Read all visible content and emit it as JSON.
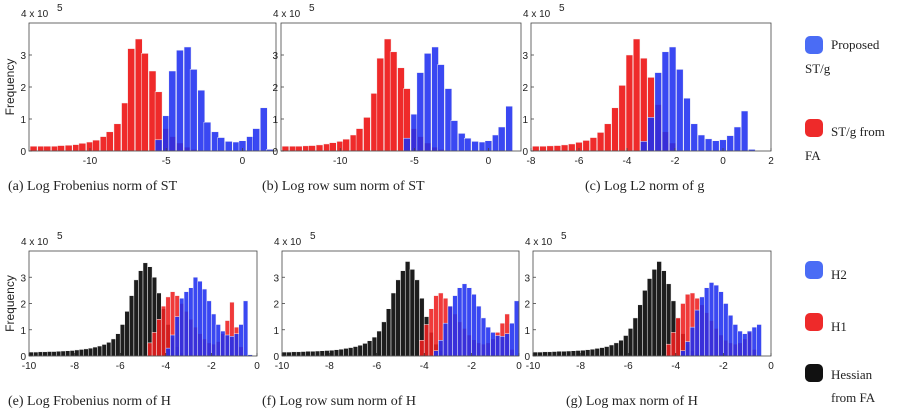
{
  "chart_data": [
    {
      "type": "bar",
      "caption": "(a)  Log Frobenius norm of ST",
      "ylabel": "Frequency",
      "y_exponent": "4 x 10",
      "y_exponent_power": "5",
      "xlim": [
        -14,
        2.2
      ],
      "ylim": [
        0,
        4
      ],
      "xticks": [
        -10,
        -5,
        0
      ],
      "yticks": [
        0,
        1,
        2,
        3
      ],
      "bar_width": 0.46,
      "series": [
        {
          "name": "ST/g from FA",
          "color": "#ee1f1f",
          "x": [
            -13.7,
            -13.2,
            -12.8,
            -12.3,
            -11.9,
            -11.4,
            -10.9,
            -10.5,
            -10.0,
            -9.6,
            -9.1,
            -8.7,
            -8.2,
            -7.7,
            -7.3,
            -6.8,
            -6.4,
            -5.9,
            -5.5,
            -5.0,
            -4.6,
            -4.1,
            -3.6,
            -3.2
          ],
          "values": [
            0.15,
            0.15,
            0.15,
            0.15,
            0.17,
            0.18,
            0.2,
            0.24,
            0.28,
            0.34,
            0.45,
            0.6,
            0.85,
            1.5,
            3.2,
            3.5,
            3.05,
            2.5,
            1.85,
            0.7,
            0.45,
            0.25,
            0.12,
            0.05
          ]
        },
        {
          "name": "Proposed ST/g",
          "color": "#1f2ff0",
          "x": [
            -5.5,
            -5.0,
            -4.6,
            -4.1,
            -3.6,
            -3.2,
            -2.7,
            -2.3,
            -1.8,
            -1.4,
            -0.9,
            -0.4,
            0.0,
            0.5,
            0.9,
            1.4,
            1.8
          ],
          "values": [
            0.35,
            1.1,
            2.5,
            3.15,
            3.25,
            2.55,
            1.9,
            0.9,
            0.6,
            0.42,
            0.3,
            0.28,
            0.32,
            0.45,
            0.7,
            1.35,
            0.05
          ]
        }
      ]
    },
    {
      "type": "bar",
      "caption": "(b)  Log row sum norm of ST",
      "ylabel": "",
      "y_exponent": "4 x 10",
      "y_exponent_power": "5",
      "xlim": [
        -14,
        2.2
      ],
      "ylim": [
        0,
        4
      ],
      "xticks": [
        -10,
        -5,
        0
      ],
      "yticks": [
        0,
        1,
        2,
        3
      ],
      "bar_width": 0.46,
      "series": [
        {
          "name": "ST/g from FA",
          "color": "#ee1f1f",
          "x": [
            -13.7,
            -13.2,
            -12.8,
            -12.3,
            -11.9,
            -11.4,
            -10.9,
            -10.5,
            -10.0,
            -9.6,
            -9.1,
            -8.7,
            -8.2,
            -7.7,
            -7.3,
            -6.8,
            -6.4,
            -5.9,
            -5.5,
            -5.0,
            -4.6,
            -4.1,
            -3.6,
            -3.2
          ],
          "values": [
            0.15,
            0.15,
            0.15,
            0.16,
            0.17,
            0.19,
            0.22,
            0.26,
            0.3,
            0.37,
            0.5,
            0.7,
            1.05,
            1.8,
            2.9,
            3.5,
            3.1,
            2.6,
            1.95,
            0.7,
            0.45,
            0.25,
            0.12,
            0.05
          ]
        },
        {
          "name": "Proposed ST/g",
          "color": "#1f2ff0",
          "x": [
            -5.5,
            -5.0,
            -4.6,
            -4.1,
            -3.6,
            -3.2,
            -2.7,
            -2.3,
            -1.8,
            -1.4,
            -0.9,
            -0.4,
            0.0,
            0.5,
            0.9,
            1.4
          ],
          "values": [
            0.4,
            1.15,
            2.45,
            3.05,
            3.25,
            2.7,
            1.95,
            0.95,
            0.55,
            0.4,
            0.3,
            0.28,
            0.32,
            0.5,
            0.75,
            1.4
          ]
        }
      ]
    },
    {
      "type": "bar",
      "caption": "(c)  Log L2 norm of g",
      "ylabel": "",
      "y_exponent": "4 x 10",
      "y_exponent_power": "5",
      "xlim": [
        -8,
        2
      ],
      "ylim": [
        0,
        4
      ],
      "xticks": [
        -8,
        -6,
        -4,
        -2,
        0,
        2
      ],
      "yticks": [
        0,
        1,
        2,
        3
      ],
      "bar_width": 0.28,
      "series": [
        {
          "name": "ST/g from FA",
          "color": "#ee1f1f",
          "x": [
            -7.8,
            -7.5,
            -7.2,
            -6.9,
            -6.6,
            -6.3,
            -6.0,
            -5.7,
            -5.4,
            -5.1,
            -4.8,
            -4.5,
            -4.2,
            -3.9,
            -3.6,
            -3.3,
            -3.0,
            -2.7,
            -2.4,
            -2.1
          ],
          "values": [
            0.15,
            0.15,
            0.16,
            0.17,
            0.19,
            0.22,
            0.27,
            0.33,
            0.42,
            0.58,
            0.85,
            1.35,
            2.05,
            3.0,
            3.5,
            2.9,
            2.3,
            1.45,
            0.6,
            0.25
          ]
        },
        {
          "name": "Proposed ST/g",
          "color": "#1f2ff0",
          "x": [
            -3.3,
            -3.0,
            -2.7,
            -2.4,
            -2.1,
            -1.8,
            -1.5,
            -1.2,
            -0.9,
            -0.6,
            -0.3,
            0.0,
            0.3,
            0.6,
            0.9,
            1.2
          ],
          "values": [
            0.3,
            1.05,
            2.45,
            3.1,
            3.25,
            2.55,
            1.65,
            0.85,
            0.5,
            0.38,
            0.32,
            0.35,
            0.48,
            0.75,
            1.25,
            0.05
          ]
        }
      ]
    },
    {
      "type": "bar",
      "caption": "(e)  Log Frobenius norm of H",
      "ylabel": "Frequency",
      "y_exponent": "4 x 10",
      "y_exponent_power": "5",
      "xlim": [
        -10,
        0
      ],
      "ylim": [
        0,
        4
      ],
      "xticks": [
        -10,
        -8,
        -6,
        -4,
        -2,
        0
      ],
      "yticks": [
        0,
        1,
        2,
        3
      ],
      "bar_width": 0.2,
      "series": [
        {
          "name": "Hessian from FA",
          "color": "#111111",
          "x": [
            -9.9,
            -9.7,
            -9.5,
            -9.3,
            -9.1,
            -8.9,
            -8.7,
            -8.5,
            -8.3,
            -8.1,
            -7.9,
            -7.7,
            -7.5,
            -7.3,
            -7.1,
            -6.9,
            -6.7,
            -6.5,
            -6.3,
            -6.1,
            -5.9,
            -5.7,
            -5.5,
            -5.3,
            -5.1,
            -4.9,
            -4.7,
            -4.5,
            -4.3,
            -4.1,
            -3.9,
            -3.7,
            -3.5,
            -3.3
          ],
          "values": [
            0.15,
            0.15,
            0.16,
            0.16,
            0.17,
            0.17,
            0.18,
            0.19,
            0.2,
            0.21,
            0.23,
            0.25,
            0.27,
            0.3,
            0.34,
            0.38,
            0.44,
            0.52,
            0.65,
            0.85,
            1.2,
            1.7,
            2.3,
            2.9,
            3.25,
            3.55,
            3.4,
            3.0,
            2.4,
            1.8,
            1.2,
            0.7,
            0.35,
            0.12
          ]
        },
        {
          "name": "H1",
          "color": "#ee1f1f",
          "x": [
            -4.7,
            -4.5,
            -4.3,
            -4.1,
            -3.9,
            -3.7,
            -3.5,
            -3.3,
            -3.1,
            -2.9,
            -2.7,
            -2.5,
            -2.3,
            -2.1,
            -1.9,
            -1.7,
            -1.5,
            -1.3,
            -1.1,
            -0.9,
            -0.7
          ],
          "values": [
            0.5,
            0.9,
            1.4,
            1.9,
            2.25,
            2.45,
            2.3,
            2.0,
            1.7,
            1.4,
            1.1,
            0.85,
            0.65,
            0.5,
            0.45,
            0.55,
            0.85,
            1.35,
            2.05,
            1.1,
            0.35
          ]
        },
        {
          "name": "H2",
          "color": "#1f2ff0",
          "x": [
            -3.9,
            -3.7,
            -3.5,
            -3.3,
            -3.1,
            -2.9,
            -2.7,
            -2.5,
            -2.3,
            -2.1,
            -1.9,
            -1.7,
            -1.5,
            -1.3,
            -1.1,
            -0.9,
            -0.7,
            -0.5,
            -0.3
          ],
          "values": [
            0.3,
            0.8,
            1.5,
            2.2,
            2.45,
            2.6,
            3.0,
            2.85,
            2.55,
            2.1,
            1.6,
            1.2,
            0.95,
            0.8,
            0.75,
            0.85,
            1.2,
            2.1,
            0.05
          ]
        }
      ]
    },
    {
      "type": "bar",
      "caption": "(f)  Log row sum norm of H",
      "ylabel": "",
      "y_exponent": "4 x 10",
      "y_exponent_power": "5",
      "xlim": [
        -10,
        0
      ],
      "ylim": [
        0,
        4
      ],
      "xticks": [
        -10,
        -8,
        -6,
        -4,
        -2,
        0
      ],
      "yticks": [
        0,
        1,
        2,
        3
      ],
      "bar_width": 0.2,
      "series": [
        {
          "name": "Hessian from FA",
          "color": "#111111",
          "x": [
            -9.9,
            -9.7,
            -9.5,
            -9.3,
            -9.1,
            -8.9,
            -8.7,
            -8.5,
            -8.3,
            -8.1,
            -7.9,
            -7.7,
            -7.5,
            -7.3,
            -7.1,
            -6.9,
            -6.7,
            -6.5,
            -6.3,
            -6.1,
            -5.9,
            -5.7,
            -5.5,
            -5.3,
            -5.1,
            -4.9,
            -4.7,
            -4.5,
            -4.3,
            -4.1,
            -3.9,
            -3.7,
            -3.5,
            -3.3,
            -3.1
          ],
          "values": [
            0.15,
            0.15,
            0.16,
            0.16,
            0.17,
            0.18,
            0.18,
            0.19,
            0.2,
            0.21,
            0.22,
            0.24,
            0.26,
            0.29,
            0.32,
            0.36,
            0.41,
            0.48,
            0.58,
            0.72,
            0.95,
            1.3,
            1.8,
            2.4,
            2.9,
            3.25,
            3.6,
            3.3,
            2.9,
            2.2,
            1.5,
            0.9,
            0.45,
            0.2,
            0.08
          ]
        },
        {
          "name": "H1",
          "color": "#ee1f1f",
          "x": [
            -4.1,
            -3.9,
            -3.7,
            -3.5,
            -3.3,
            -3.1,
            -2.9,
            -2.7,
            -2.5,
            -2.3,
            -2.1,
            -1.9,
            -1.7,
            -1.5,
            -1.3,
            -1.1,
            -0.9,
            -0.7,
            -0.5,
            -0.3
          ],
          "values": [
            0.6,
            1.2,
            1.8,
            2.3,
            2.4,
            2.2,
            1.9,
            1.6,
            1.3,
            1.05,
            0.8,
            0.62,
            0.5,
            0.45,
            0.5,
            0.65,
            0.9,
            1.25,
            1.6,
            0.25
          ]
        },
        {
          "name": "H2",
          "color": "#1f2ff0",
          "x": [
            -3.5,
            -3.3,
            -3.1,
            -2.9,
            -2.7,
            -2.5,
            -2.3,
            -2.1,
            -1.9,
            -1.7,
            -1.5,
            -1.3,
            -1.1,
            -0.9,
            -0.7,
            -0.5,
            -0.3,
            -0.1
          ],
          "values": [
            0.2,
            0.6,
            1.25,
            1.9,
            2.3,
            2.6,
            2.75,
            2.6,
            2.35,
            1.9,
            1.45,
            1.1,
            0.9,
            0.78,
            0.75,
            0.85,
            1.25,
            2.1
          ]
        }
      ]
    },
    {
      "type": "bar",
      "caption": "(g)  Log max norm of H",
      "ylabel": "",
      "y_exponent": "4 x 10",
      "y_exponent_power": "5",
      "xlim": [
        -10,
        0
      ],
      "ylim": [
        0,
        4
      ],
      "xticks": [
        -10,
        -8,
        -6,
        -4,
        -2,
        0
      ],
      "yticks": [
        0,
        1,
        2,
        3
      ],
      "bar_width": 0.2,
      "series": [
        {
          "name": "Hessian from FA",
          "color": "#111111",
          "x": [
            -9.9,
            -9.7,
            -9.5,
            -9.3,
            -9.1,
            -8.9,
            -8.7,
            -8.5,
            -8.3,
            -8.1,
            -7.9,
            -7.7,
            -7.5,
            -7.3,
            -7.1,
            -6.9,
            -6.7,
            -6.5,
            -6.3,
            -6.1,
            -5.9,
            -5.7,
            -5.5,
            -5.3,
            -5.1,
            -4.9,
            -4.7,
            -4.5,
            -4.3,
            -4.1,
            -3.9,
            -3.7,
            -3.5,
            -3.3,
            -3.1
          ],
          "values": [
            0.15,
            0.15,
            0.16,
            0.16,
            0.17,
            0.18,
            0.18,
            0.19,
            0.2,
            0.21,
            0.22,
            0.24,
            0.26,
            0.29,
            0.32,
            0.36,
            0.42,
            0.5,
            0.6,
            0.78,
            1.05,
            1.45,
            1.95,
            2.5,
            2.95,
            3.3,
            3.6,
            3.25,
            2.75,
            2.1,
            1.45,
            0.85,
            0.45,
            0.2,
            0.08
          ]
        },
        {
          "name": "H1",
          "color": "#ee1f1f",
          "x": [
            -4.3,
            -4.1,
            -3.9,
            -3.7,
            -3.5,
            -3.3,
            -3.1,
            -2.9,
            -2.7,
            -2.5,
            -2.3,
            -2.1,
            -1.9,
            -1.7,
            -1.5,
            -1.3,
            -1.1,
            -0.9,
            -0.7
          ],
          "values": [
            0.45,
            0.9,
            1.45,
            2.0,
            2.35,
            2.4,
            2.2,
            1.95,
            1.65,
            1.35,
            1.05,
            0.8,
            0.6,
            0.5,
            0.45,
            0.5,
            0.65,
            0.9,
            0.25
          ]
        },
        {
          "name": "H2",
          "color": "#1f2ff0",
          "x": [
            -3.7,
            -3.5,
            -3.3,
            -3.1,
            -2.9,
            -2.7,
            -2.5,
            -2.3,
            -2.1,
            -1.9,
            -1.7,
            -1.5,
            -1.3,
            -1.1,
            -0.9,
            -0.7,
            -0.5
          ],
          "values": [
            0.2,
            0.55,
            1.1,
            1.75,
            2.25,
            2.6,
            2.8,
            2.7,
            2.45,
            2.0,
            1.55,
            1.2,
            0.95,
            0.85,
            0.95,
            1.1,
            1.2
          ]
        }
      ]
    }
  ],
  "legends": [
    {
      "items": [
        {
          "label": "Proposed ST/g",
          "color": "#4a6cf5"
        },
        {
          "label": "ST/g from FA",
          "color": "#ee2a2a"
        }
      ]
    },
    {
      "items": [
        {
          "label": "H2",
          "color": "#4a6cf5"
        },
        {
          "label": "H1",
          "color": "#ee2a2a"
        },
        {
          "label": "Hessian from FA",
          "color": "#111111"
        }
      ]
    }
  ]
}
